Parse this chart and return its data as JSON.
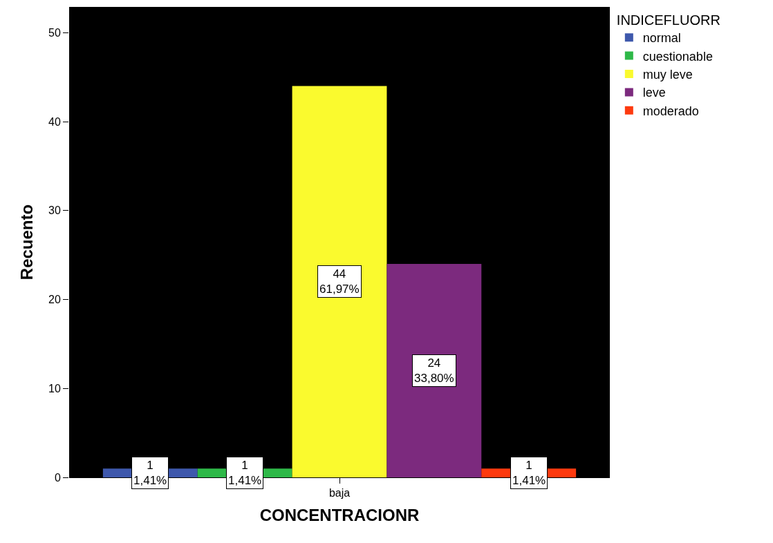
{
  "chart_data": {
    "type": "bar",
    "xlabel": "CONCENTRACIONR",
    "ylabel": "Recuento",
    "legend_title": "INDICEFLUORR",
    "categories": [
      "baja"
    ],
    "series": [
      {
        "name": "normal",
        "color": "#3e58ac",
        "values": [
          1
        ],
        "value_labels": [
          "1\n1,41%"
        ]
      },
      {
        "name": "cuestionable",
        "color": "#2eb848",
        "values": [
          1
        ],
        "value_labels": [
          "1\n1,41%"
        ]
      },
      {
        "name": "muy leve",
        "color": "#fafa2e",
        "values": [
          44
        ],
        "value_labels": [
          "44\n61,97%"
        ]
      },
      {
        "name": "leve",
        "color": "#7c2a7e",
        "values": [
          24
        ],
        "value_labels": [
          "24\n33,80%"
        ]
      },
      {
        "name": "moderado",
        "color": "#fd3a0f",
        "values": [
          1
        ],
        "value_labels": [
          "1\n1,41%"
        ]
      }
    ],
    "ylim": [
      0,
      52.9
    ],
    "yticks": [
      0,
      10,
      20,
      30,
      40,
      50
    ],
    "grid": false,
    "legend": "top right"
  }
}
